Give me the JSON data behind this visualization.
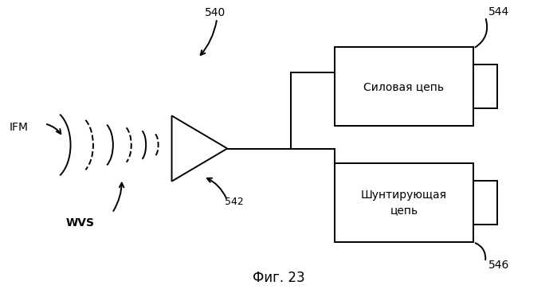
{
  "fig_width": 6.99,
  "fig_height": 3.73,
  "dpi": 100,
  "background_color": "#ffffff",
  "title": "Фиг. 23",
  "label_540": "540",
  "label_542": "542",
  "label_544": "544",
  "label_546": "546",
  "label_ifm": "IFM",
  "label_wvs": "WVS",
  "box1_text": "Силовая цепь",
  "box2_text": "Шунтирующая\nцепь",
  "line_color": "#000000",
  "box_facecolor": "#ffffff",
  "box_edgecolor": "#000000"
}
